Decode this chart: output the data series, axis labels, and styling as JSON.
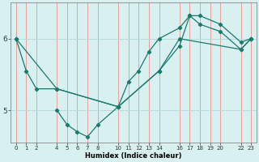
{
  "xlabel": "Humidex (Indice chaleur)",
  "bg_color": "#d8f0f0",
  "line_color": "#1a7a6e",
  "grid_color_v": "#e8a0a0",
  "grid_color_h": "#b8dada",
  "xlim": [
    -0.5,
    23.5
  ],
  "ylim": [
    4.55,
    6.5
  ],
  "yticks": [
    5,
    6
  ],
  "xtick_positions": [
    0,
    1,
    2,
    4,
    5,
    6,
    7,
    8,
    10,
    11,
    12,
    13,
    14,
    16,
    17,
    18,
    19,
    20,
    22,
    23
  ],
  "xtick_labels": [
    "0",
    "1",
    "2",
    "4",
    "5",
    "6",
    "7",
    "8",
    "10",
    "11",
    "12",
    "13",
    "14",
    "16",
    "17",
    "18",
    "19",
    "20",
    "22",
    "23"
  ],
  "lines": [
    {
      "x": [
        0,
        1,
        2,
        4,
        10,
        11,
        12,
        13,
        14,
        16,
        17,
        18,
        20,
        22,
        23
      ],
      "y": [
        6.0,
        5.55,
        5.3,
        5.3,
        5.05,
        5.4,
        5.55,
        5.82,
        6.0,
        6.15,
        6.32,
        6.32,
        6.2,
        5.95,
        6.0
      ]
    },
    {
      "x": [
        4,
        5,
        6,
        7,
        8,
        10,
        14,
        16,
        17,
        18,
        20,
        22,
        23
      ],
      "y": [
        5.0,
        4.8,
        4.7,
        4.63,
        4.8,
        5.05,
        5.55,
        5.9,
        6.32,
        6.2,
        6.1,
        5.85,
        6.0
      ]
    },
    {
      "x": [
        0,
        4,
        10,
        14,
        16,
        22,
        23
      ],
      "y": [
        6.0,
        5.3,
        5.05,
        5.55,
        6.0,
        5.85,
        6.0
      ]
    }
  ]
}
